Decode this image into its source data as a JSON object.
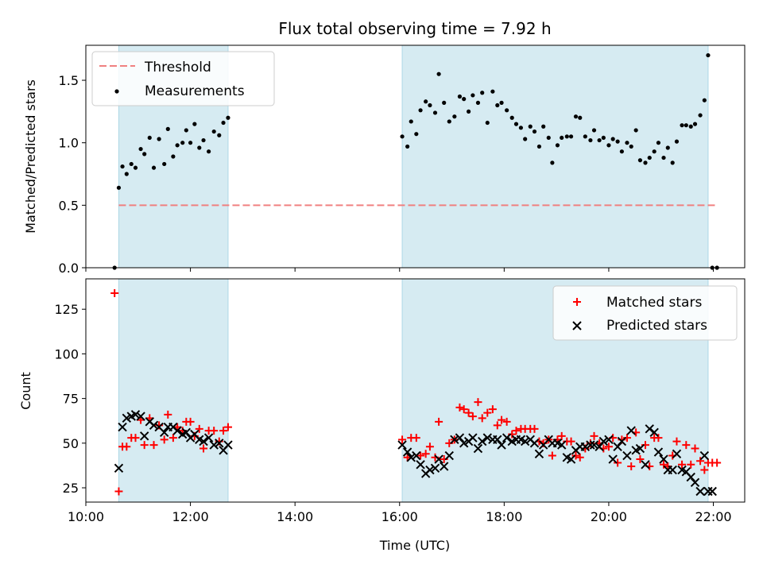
{
  "title": "Flux total observing time = 7.92 h",
  "xlabel": "Time (UTC)",
  "colors": {
    "threshold": "#f08080",
    "measurements": "#000000",
    "matched": "#ff0000",
    "predicted": "#000000",
    "observing_window": "#add8e6"
  },
  "chart_data": [
    {
      "type": "scatter",
      "panel": "top",
      "ylabel": "Matched/Predicted stars",
      "xlim": [
        10.0,
        22.6
      ],
      "ylim": [
        0,
        1.78
      ],
      "yticks": [
        0.0,
        0.5,
        1.0,
        1.5
      ],
      "ytick_labels": [
        "0.0",
        "0.5",
        "1.0",
        "1.5"
      ],
      "observing_windows": [
        [
          10.63,
          12.72
        ],
        [
          16.05,
          21.9
        ]
      ],
      "legend": {
        "location": "upper left",
        "entries": [
          "Threshold",
          "Measurements"
        ]
      },
      "series": [
        {
          "name": "Threshold",
          "kind": "dashed-line",
          "x": [
            10.63,
            22.07
          ],
          "y": [
            0.5,
            0.5
          ]
        },
        {
          "name": "Measurements",
          "kind": "dots",
          "x": [
            10.55,
            10.63,
            10.7,
            10.78,
            10.87,
            10.95,
            11.05,
            11.12,
            11.22,
            11.3,
            11.4,
            11.5,
            11.57,
            11.67,
            11.75,
            11.85,
            11.92,
            12.0,
            12.08,
            12.17,
            12.25,
            12.35,
            12.45,
            12.55,
            12.63,
            12.72,
            16.05,
            16.15,
            16.22,
            16.32,
            16.4,
            16.5,
            16.58,
            16.68,
            16.75,
            16.85,
            16.95,
            17.05,
            17.15,
            17.23,
            17.32,
            17.4,
            17.5,
            17.58,
            17.68,
            17.78,
            17.87,
            17.95,
            18.05,
            18.15,
            18.23,
            18.32,
            18.4,
            18.5,
            18.58,
            18.67,
            18.75,
            18.85,
            18.92,
            19.02,
            19.1,
            19.2,
            19.28,
            19.37,
            19.45,
            19.55,
            19.65,
            19.72,
            19.82,
            19.9,
            20.0,
            20.08,
            20.17,
            20.25,
            20.35,
            20.43,
            20.52,
            20.6,
            20.7,
            20.78,
            20.87,
            20.95,
            21.05,
            21.13,
            21.22,
            21.3,
            21.4,
            21.48,
            21.57,
            21.65,
            21.75,
            21.83,
            21.9,
            21.98,
            22.07
          ],
          "y": [
            0.0,
            0.64,
            0.81,
            0.75,
            0.83,
            0.8,
            0.95,
            0.91,
            1.04,
            0.8,
            1.03,
            0.83,
            1.11,
            0.89,
            0.98,
            1.0,
            1.1,
            1.0,
            1.15,
            0.96,
            1.02,
            0.93,
            1.09,
            1.06,
            1.16,
            1.2,
            1.05,
            0.97,
            1.17,
            1.07,
            1.26,
            1.33,
            1.3,
            1.24,
            1.55,
            1.32,
            1.17,
            1.21,
            1.37,
            1.35,
            1.25,
            1.38,
            1.32,
            1.4,
            1.16,
            1.41,
            1.3,
            1.32,
            1.26,
            1.2,
            1.15,
            1.12,
            1.03,
            1.13,
            1.09,
            0.97,
            1.13,
            1.04,
            0.84,
            0.98,
            1.04,
            1.05,
            1.05,
            1.21,
            1.2,
            1.05,
            1.02,
            1.1,
            1.02,
            1.04,
            0.98,
            1.03,
            1.01,
            0.93,
            1.0,
            0.97,
            1.1,
            0.86,
            0.84,
            0.88,
            0.93,
            1.0,
            0.88,
            0.96,
            0.84,
            1.01,
            1.14,
            1.14,
            1.13,
            1.15,
            1.22,
            1.34,
            1.7,
            0.0,
            0.0
          ]
        }
      ]
    },
    {
      "type": "scatter",
      "panel": "bottom",
      "ylabel": "Count",
      "xlabel": "Time (UTC)",
      "xlim": [
        10.0,
        22.6
      ],
      "ylim": [
        17,
        142
      ],
      "xticks": [
        10,
        12,
        14,
        16,
        18,
        20,
        22
      ],
      "xtick_labels": [
        "10:00",
        "12:00",
        "14:00",
        "16:00",
        "18:00",
        "20:00",
        "22:00"
      ],
      "yticks": [
        25,
        50,
        75,
        100,
        125
      ],
      "ytick_labels": [
        "25",
        "50",
        "75",
        "100",
        "125"
      ],
      "observing_windows": [
        [
          10.63,
          12.72
        ],
        [
          16.05,
          21.9
        ]
      ],
      "legend": {
        "location": "upper right",
        "entries": [
          "Matched stars",
          "Predicted stars"
        ]
      },
      "series": [
        {
          "name": "Matched stars",
          "marker": "+",
          "x": [
            10.55,
            10.63,
            10.7,
            10.78,
            10.87,
            10.95,
            11.05,
            11.12,
            11.22,
            11.3,
            11.4,
            11.5,
            11.57,
            11.67,
            11.75,
            11.85,
            11.92,
            12.0,
            12.08,
            12.17,
            12.25,
            12.35,
            12.45,
            12.55,
            12.63,
            12.72,
            16.05,
            16.15,
            16.22,
            16.32,
            16.4,
            16.5,
            16.58,
            16.68,
            16.75,
            16.85,
            16.95,
            17.05,
            17.15,
            17.23,
            17.32,
            17.4,
            17.5,
            17.58,
            17.68,
            17.78,
            17.87,
            17.95,
            18.05,
            18.15,
            18.23,
            18.32,
            18.4,
            18.5,
            18.58,
            18.67,
            18.75,
            18.85,
            18.92,
            19.02,
            19.1,
            19.2,
            19.28,
            19.37,
            19.45,
            19.55,
            19.65,
            19.72,
            19.82,
            19.9,
            20.0,
            20.08,
            20.17,
            20.25,
            20.35,
            20.43,
            20.52,
            20.6,
            20.7,
            20.78,
            20.87,
            20.95,
            21.05,
            21.13,
            21.22,
            21.3,
            21.4,
            21.48,
            21.57,
            21.65,
            21.75,
            21.83,
            21.9,
            21.98,
            22.07
          ],
          "y": [
            134,
            23,
            48,
            48,
            53,
            53,
            63,
            49,
            64,
            49,
            60,
            52,
            66,
            53,
            59,
            57,
            62,
            62,
            54,
            58,
            47,
            57,
            57,
            51,
            57,
            59,
            52,
            42,
            53,
            53,
            43,
            44,
            48,
            42,
            62,
            41,
            50,
            52,
            70,
            69,
            67,
            65,
            73,
            64,
            67,
            69,
            60,
            63,
            62,
            55,
            57,
            58,
            58,
            58,
            58,
            51,
            50,
            52,
            43,
            52,
            54,
            51,
            51,
            43,
            42,
            47,
            50,
            54,
            50,
            47,
            48,
            53,
            39,
            52,
            53,
            37,
            56,
            41,
            49,
            37,
            53,
            53,
            38,
            37,
            43,
            51,
            38,
            49,
            38,
            47,
            40,
            35,
            39,
            39,
            39
          ]
        },
        {
          "name": "Predicted stars",
          "marker": "x",
          "x": [
            10.63,
            10.7,
            10.78,
            10.87,
            10.95,
            11.05,
            11.12,
            11.22,
            11.3,
            11.4,
            11.5,
            11.57,
            11.67,
            11.75,
            11.85,
            11.92,
            12.0,
            12.08,
            12.17,
            12.25,
            12.35,
            12.45,
            12.55,
            12.63,
            12.72,
            16.05,
            16.15,
            16.22,
            16.32,
            16.4,
            16.5,
            16.58,
            16.68,
            16.75,
            16.85,
            16.95,
            17.05,
            17.15,
            17.23,
            17.32,
            17.4,
            17.5,
            17.58,
            17.68,
            17.78,
            17.87,
            17.95,
            18.05,
            18.15,
            18.23,
            18.32,
            18.4,
            18.5,
            18.58,
            18.67,
            18.75,
            18.85,
            18.92,
            19.02,
            19.1,
            19.2,
            19.28,
            19.37,
            19.45,
            19.55,
            19.65,
            19.72,
            19.82,
            19.9,
            20.0,
            20.08,
            20.17,
            20.25,
            20.35,
            20.43,
            20.52,
            20.6,
            20.7,
            20.78,
            20.87,
            20.95,
            21.05,
            21.13,
            21.22,
            21.3,
            21.4,
            21.48,
            21.57,
            21.65,
            21.75,
            21.83,
            21.9,
            21.98
          ],
          "y": [
            36,
            59,
            64,
            65,
            66,
            65,
            54,
            62,
            60,
            59,
            56,
            59,
            59,
            57,
            55,
            56,
            53,
            55,
            52,
            51,
            53,
            49,
            50,
            46,
            49,
            49,
            45,
            42,
            43,
            38,
            33,
            35,
            36,
            41,
            37,
            43,
            52,
            53,
            50,
            51,
            53,
            47,
            51,
            53,
            52,
            52,
            49,
            53,
            51,
            52,
            52,
            51,
            52,
            50,
            44,
            49,
            52,
            50,
            50,
            49,
            42,
            41,
            46,
            48,
            48,
            49,
            49,
            48,
            51,
            52,
            41,
            48,
            51,
            43,
            57,
            46,
            47,
            38,
            58,
            56,
            45,
            41,
            35,
            35,
            44,
            35,
            34,
            31,
            28,
            23,
            43,
            23,
            23
          ]
        }
      ]
    }
  ]
}
